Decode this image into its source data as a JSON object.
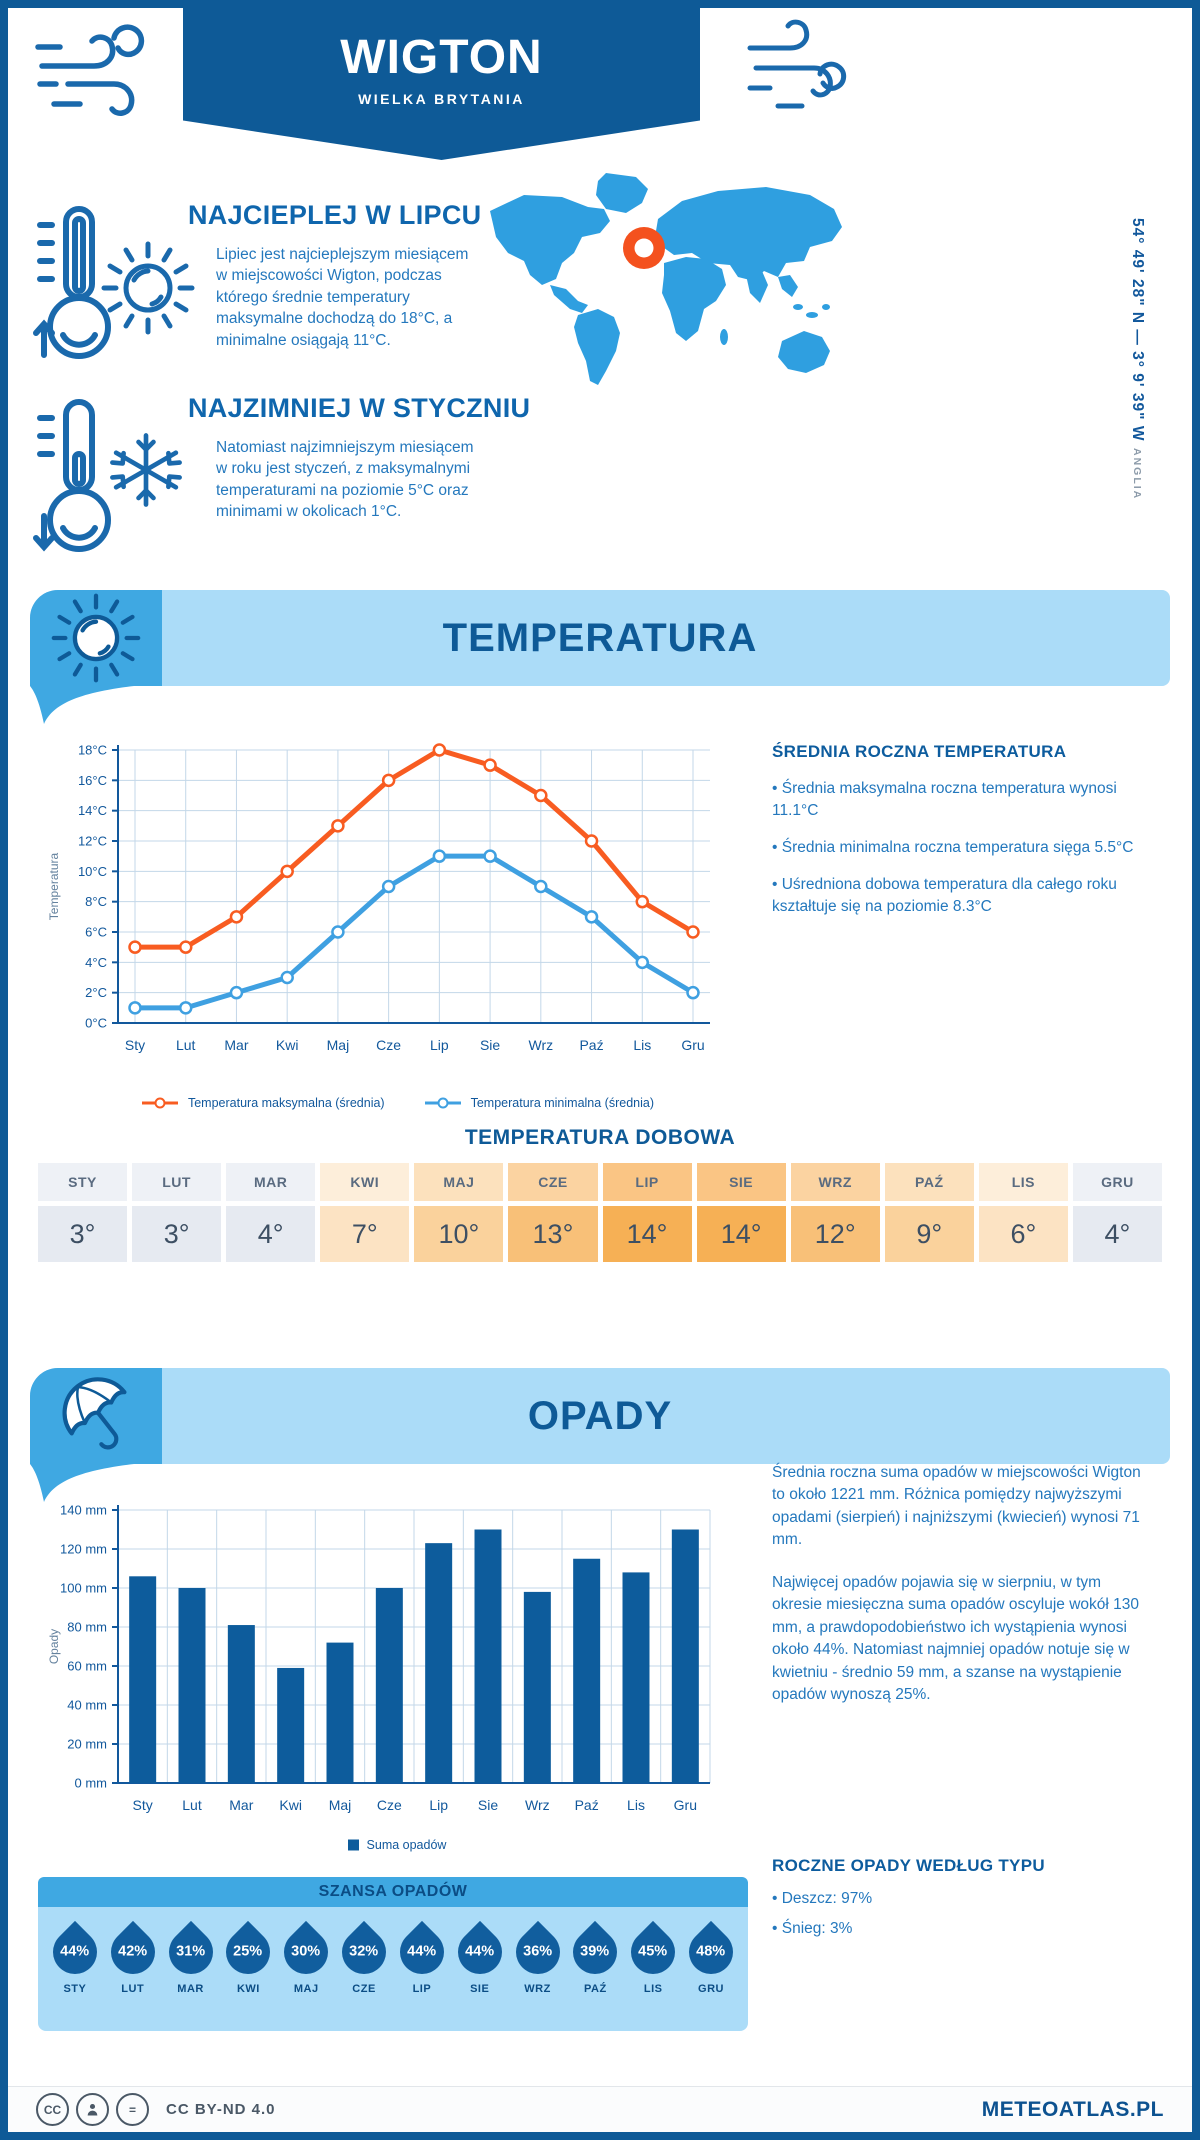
{
  "header": {
    "title": "WIGTON",
    "subtitle": "WIELKA BRYTANIA",
    "coordinates": "54° 49' 28\" N — 3° 9' 39\" W",
    "region": "ANGLIA"
  },
  "highlights": {
    "warm": {
      "title": "NAJCIEPLEJ W LIPCU",
      "text": "Lipiec jest najcieplejszym miesiącem w miejscowości Wigton, podczas którego średnie temperatury maksymalne dochodzą do 18°C, a minimalne osiągają 11°C."
    },
    "cold": {
      "title": "NAJZIMNIEJ W STYCZNIU",
      "text": "Natomiast najzimniejszym miesiącem w roku jest styczeń, z maksymalnymi temperaturami na poziomie 5°C oraz minimami w okolicach 1°C."
    }
  },
  "temperature": {
    "band_title": "TEMPERATURA",
    "panel_title": "ŚREDNIA ROCZNA TEMPERATURA",
    "panel_bullets": [
      "Średnia maksymalna roczna temperatura wynosi 11.1°C",
      "Średnia minimalna roczna temperatura sięga 5.5°C",
      "Uśredniona dobowa temperatura dla całego roku kształtuje się na poziomie 8.3°C"
    ],
    "daily_title": "TEMPERATURA DOBOWA",
    "daily": {
      "months": [
        "STY",
        "LUT",
        "MAR",
        "KWI",
        "MAJ",
        "CZE",
        "LIP",
        "SIE",
        "WRZ",
        "PAŹ",
        "LIS",
        "GRU"
      ],
      "values": [
        "3°",
        "3°",
        "4°",
        "7°",
        "10°",
        "13°",
        "14°",
        "14°",
        "12°",
        "9°",
        "6°",
        "4°"
      ],
      "header_colors": [
        "#eef1f6",
        "#eef1f6",
        "#eef1f6",
        "#fdeeda",
        "#fce1bd",
        "#fbd3a1",
        "#fac584",
        "#fac584",
        "#fbd3a1",
        "#fce1bd",
        "#fdeeda",
        "#eef1f6"
      ],
      "value_colors": [
        "#e6eaf1",
        "#e6eaf1",
        "#e6eaf1",
        "#fce3c3",
        "#fad29c",
        "#f8c078",
        "#f6b055",
        "#f6b055",
        "#f8c078",
        "#fad29c",
        "#fce3c3",
        "#e6eaf1"
      ]
    }
  },
  "precipitation": {
    "band_title": "OPADY",
    "paragraph1": "Średnia roczna suma opadów w miejscowości Wigton to około 1221 mm. Różnica pomiędzy najwyższymi opadami (sierpień) i najniższymi (kwiecień) wynosi 71 mm.",
    "paragraph2": "Najwięcej opadów pojawia się w sierpniu, w tym okresie miesięczna suma opadów oscyluje wokół 130 mm, a prawdopodobieństwo ich wystąpienia wynosi około 44%. Natomiast najmniej opadów notuje się w kwietniu - średnio 59 mm, a szanse na wystąpienie opadów wynoszą 25%.",
    "type_title": "ROCZNE OPADY WEDŁUG TYPU",
    "type_bullets": [
      "Deszcz: 97%",
      "Śnieg: 3%"
    ],
    "chance": {
      "title": "SZANSA OPADÓW",
      "months": [
        "STY",
        "LUT",
        "MAR",
        "KWI",
        "MAJ",
        "CZE",
        "LIP",
        "SIE",
        "WRZ",
        "PAŹ",
        "LIS",
        "GRU"
      ],
      "values": [
        "44%",
        "42%",
        "31%",
        "25%",
        "30%",
        "32%",
        "44%",
        "44%",
        "36%",
        "39%",
        "45%",
        "48%"
      ]
    }
  },
  "footer": {
    "license": "CC BY-ND 4.0",
    "brand": "METEOATLAS.PL"
  },
  "colors": {
    "primary": "#0e5a97",
    "band_bg": "#abdcf8",
    "band_icon_bg": "#3fa8e2",
    "line_max": "#f85c21",
    "line_min": "#3fa0e1",
    "bar": "#0d5c9c",
    "map_marker": "#f4511e"
  },
  "chart_data": [
    {
      "type": "line",
      "title": "Temperatura",
      "categories": [
        "Sty",
        "Lut",
        "Mar",
        "Kwi",
        "Maj",
        "Cze",
        "Lip",
        "Sie",
        "Wrz",
        "Paź",
        "Lis",
        "Gru"
      ],
      "series": [
        {
          "name": "Temperatura maksymalna (średnia)",
          "color": "#f85c21",
          "values": [
            5,
            5,
            7,
            10,
            13,
            16,
            18,
            17,
            15,
            12,
            8,
            6
          ]
        },
        {
          "name": "Temperatura minimalna (średnia)",
          "color": "#3fa0e1",
          "values": [
            1,
            1,
            2,
            3,
            6,
            9,
            11,
            11,
            9,
            7,
            4,
            2
          ]
        }
      ],
      "xlabel": "",
      "ylabel": "Temperatura",
      "ylim": [
        0,
        18
      ],
      "ytick_step": 2,
      "ytick_suffix": "°C",
      "grid": true,
      "legend_position": "bottom"
    },
    {
      "type": "bar",
      "title": "Opady",
      "categories": [
        "Sty",
        "Lut",
        "Mar",
        "Kwi",
        "Maj",
        "Cze",
        "Lip",
        "Sie",
        "Wrz",
        "Paź",
        "Lis",
        "Gru"
      ],
      "series": [
        {
          "name": "Suma opadów",
          "color": "#0d5c9c",
          "values": [
            106,
            100,
            81,
            59,
            72,
            100,
            123,
            130,
            98,
            115,
            108,
            130
          ]
        }
      ],
      "xlabel": "",
      "ylabel": "Opady",
      "ylim": [
        0,
        140
      ],
      "ytick_step": 20,
      "ytick_suffix": " mm",
      "grid": true,
      "legend_position": "bottom"
    }
  ]
}
